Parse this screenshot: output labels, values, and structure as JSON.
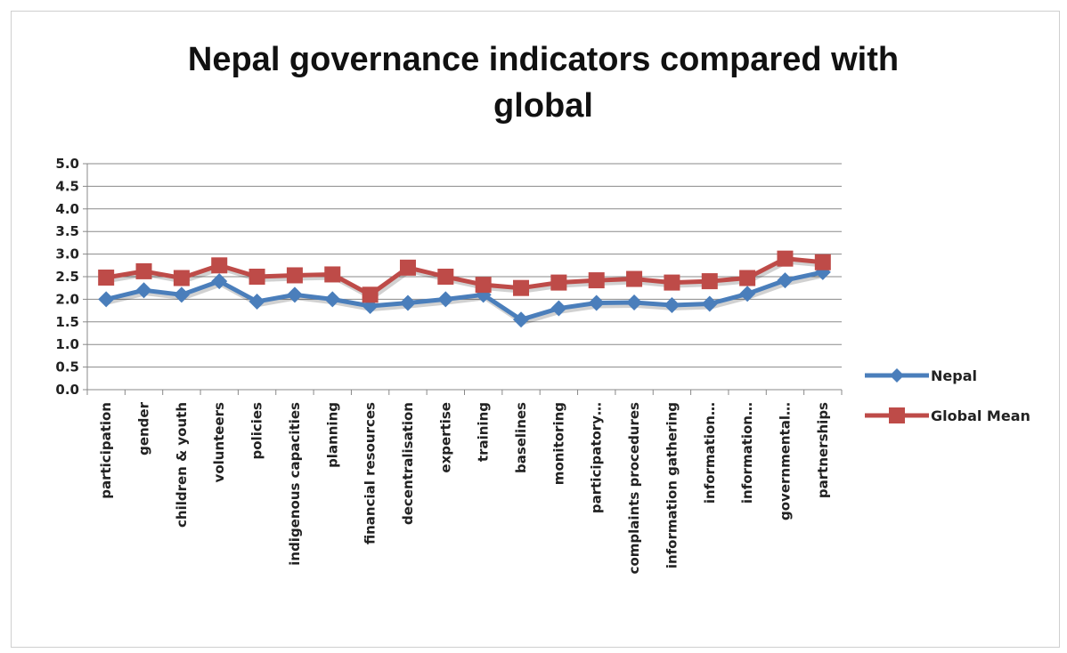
{
  "chart_data": {
    "type": "line",
    "title_lines": [
      "Nepal governance indicators compared with",
      "global"
    ],
    "categories": [
      "participation",
      "gender",
      "children & youth",
      "volunteers",
      "policies",
      "indigenous capacities",
      "planning",
      "financial resources",
      "decentralisation",
      "expertise",
      "training",
      "baselines",
      "monitoring",
      "participatory…",
      "complaints procedures",
      "information gathering",
      "information…",
      "information…",
      "governmental…",
      "partnerships"
    ],
    "y_ticks": [
      "0.0",
      "0.5",
      "1.0",
      "1.5",
      "2.0",
      "2.5",
      "3.0",
      "3.5",
      "4.0",
      "4.5",
      "5.0"
    ],
    "ylim": [
      0,
      5
    ],
    "grid": true,
    "legend_position": "right",
    "series": [
      {
        "name": "Nepal",
        "color": "#4a7ebb",
        "marker": "diamond",
        "values": [
          2.0,
          2.2,
          2.1,
          2.4,
          1.95,
          2.1,
          2.0,
          1.85,
          1.92,
          2.0,
          2.1,
          1.55,
          1.8,
          1.92,
          1.93,
          1.87,
          1.9,
          2.12,
          2.42,
          2.6
        ]
      },
      {
        "name": "Global Mean",
        "color": "#be4b48",
        "marker": "square",
        "values": [
          2.48,
          2.62,
          2.47,
          2.75,
          2.5,
          2.53,
          2.55,
          2.1,
          2.7,
          2.5,
          2.32,
          2.25,
          2.37,
          2.42,
          2.45,
          2.37,
          2.4,
          2.47,
          2.9,
          2.82
        ]
      }
    ]
  }
}
